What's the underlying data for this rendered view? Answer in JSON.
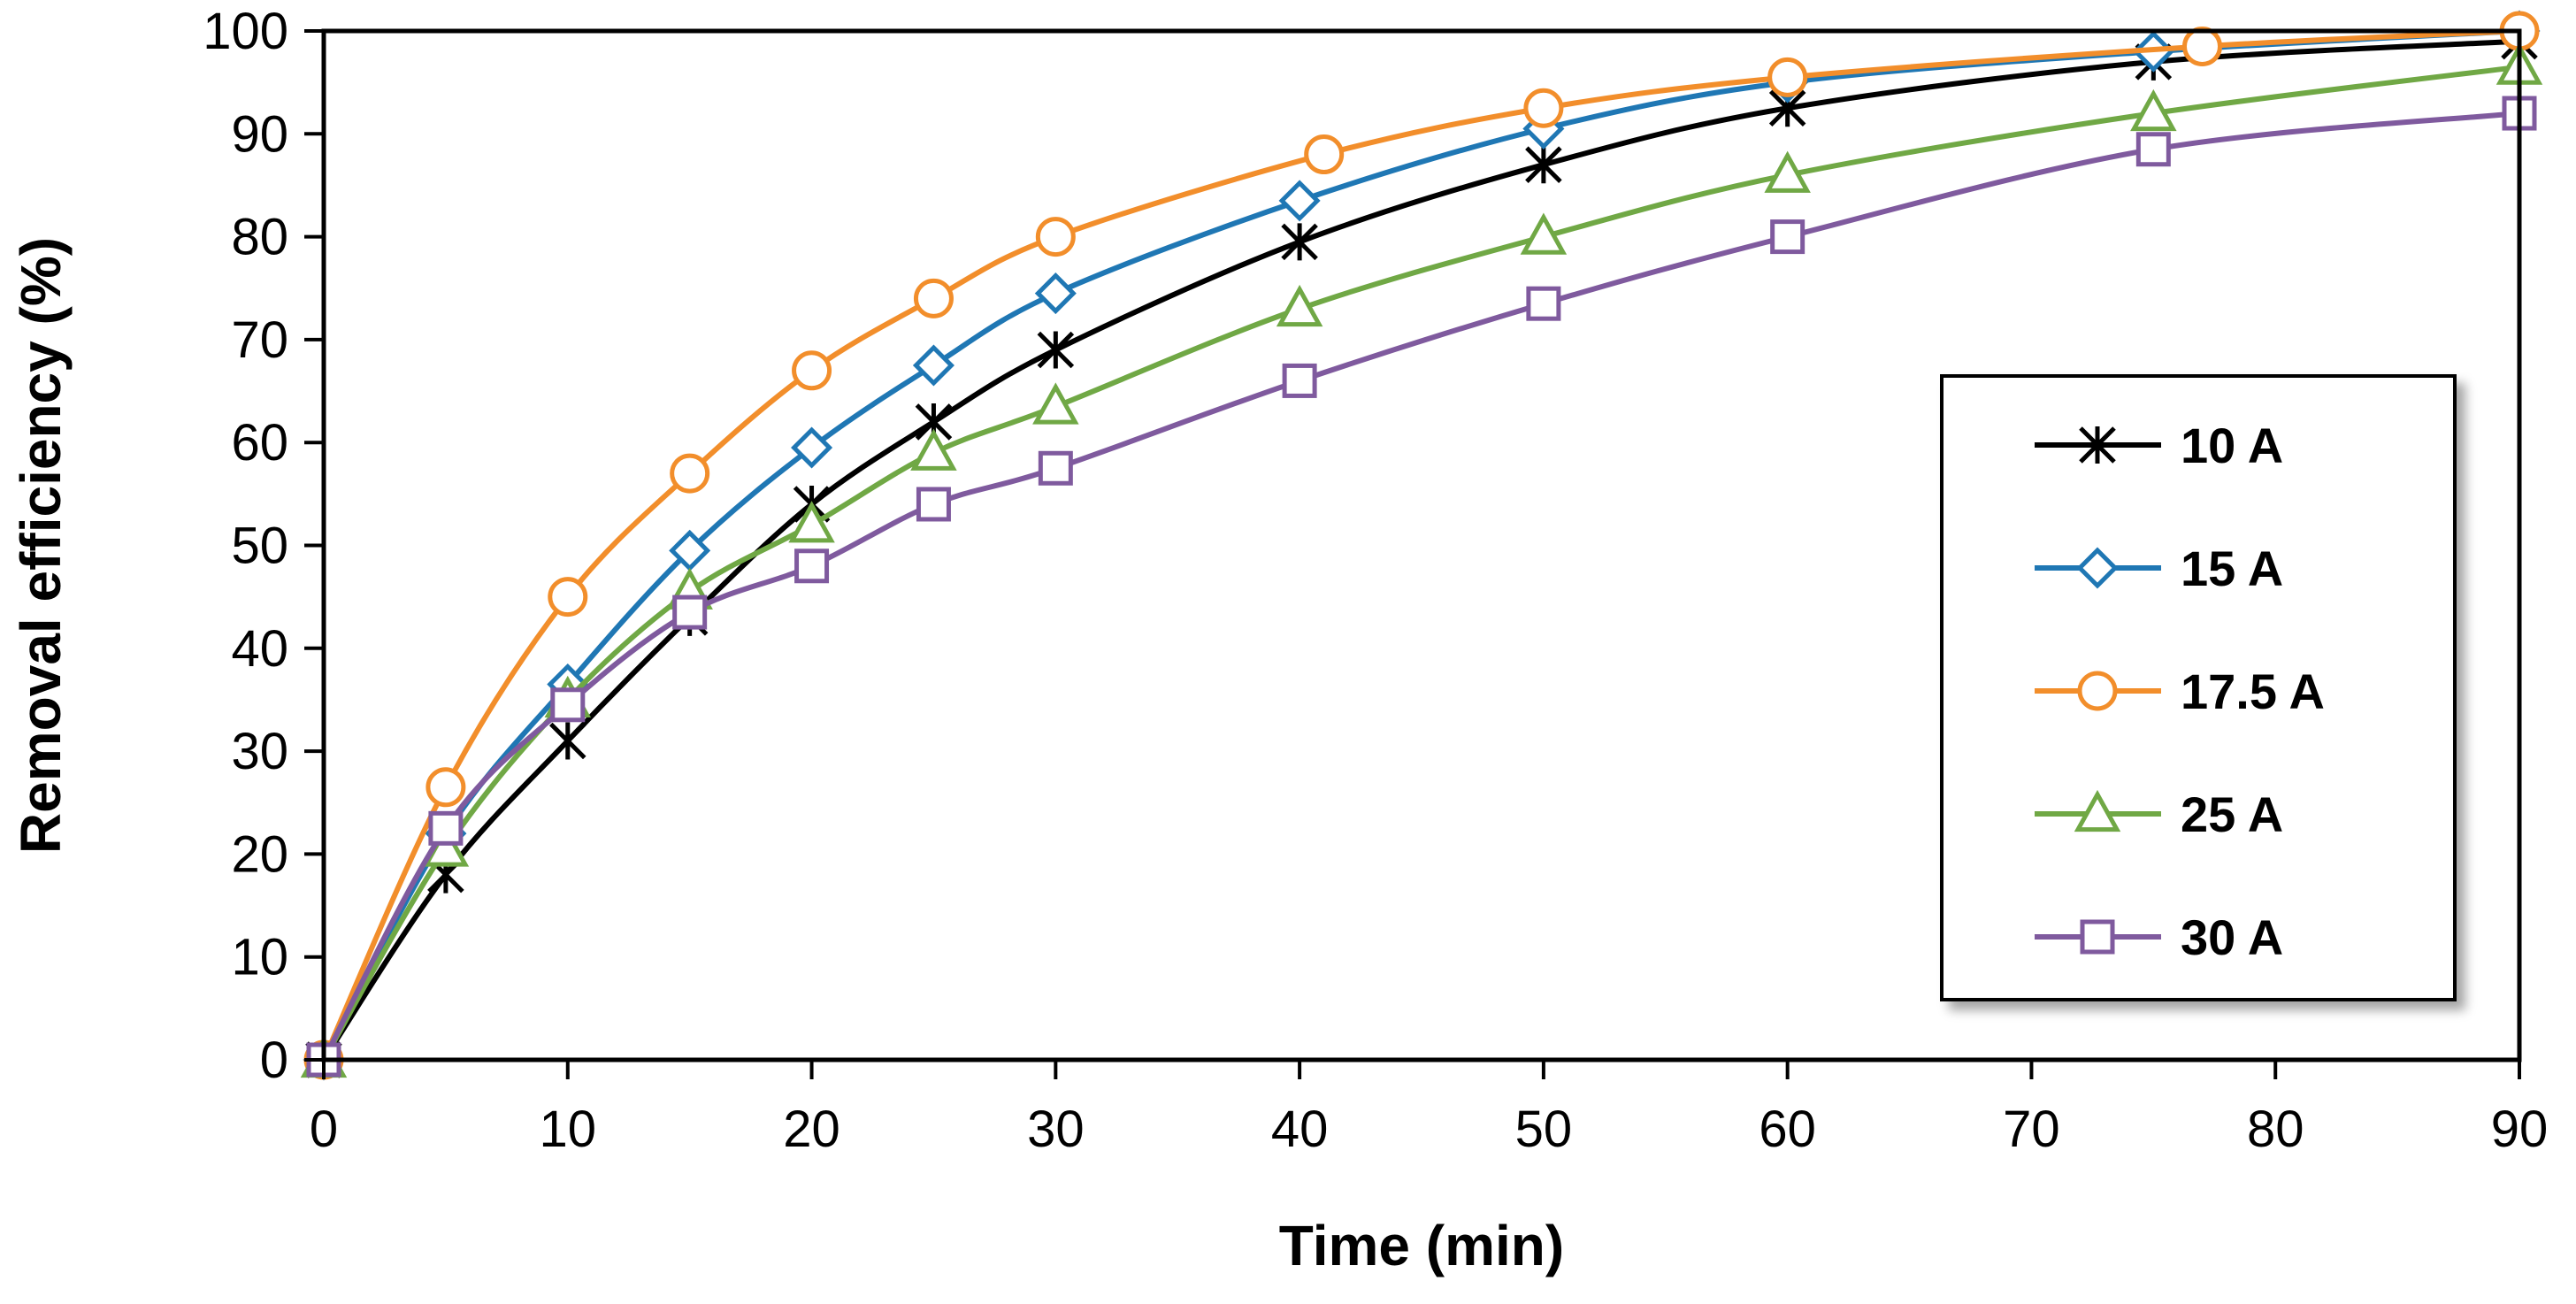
{
  "chart_data": {
    "type": "line",
    "xlabel": "Time (min)",
    "ylabel": "Removal efficiency (%)",
    "xlim": [
      0,
      90
    ],
    "ylim": [
      0,
      100
    ],
    "xticks": [
      0,
      10,
      20,
      30,
      40,
      50,
      60,
      70,
      80,
      90
    ],
    "yticks": [
      0,
      10,
      20,
      30,
      40,
      50,
      60,
      70,
      80,
      90,
      100
    ],
    "grid": false,
    "legend_position": "right",
    "series": [
      {
        "name": "10 A",
        "color": "#000000",
        "marker": "star",
        "x": [
          0,
          5,
          10,
          15,
          20,
          25,
          30,
          40,
          50,
          60,
          75,
          90
        ],
        "y": [
          0,
          18,
          31,
          43,
          54,
          62,
          69,
          79.5,
          87,
          92.5,
          97,
          99
        ]
      },
      {
        "name": "15 A",
        "color": "#1f77b4",
        "marker": "diamond",
        "x": [
          0,
          5,
          10,
          15,
          20,
          25,
          30,
          40,
          50,
          60,
          75,
          90
        ],
        "y": [
          0,
          22,
          36.5,
          49.5,
          59.5,
          67.5,
          74.5,
          83.5,
          90.5,
          95,
          98,
          100
        ]
      },
      {
        "name": "17.5 A",
        "color": "#f28e2b",
        "marker": "circle",
        "x": [
          0,
          5,
          10,
          15,
          20,
          25,
          30,
          41,
          50,
          60,
          77,
          90
        ],
        "y": [
          0,
          26.5,
          45,
          57,
          67,
          74,
          80,
          88,
          92.5,
          95.5,
          98.5,
          100
        ]
      },
      {
        "name": "25 A",
        "color": "#70a845",
        "marker": "triangle",
        "x": [
          0,
          5,
          10,
          15,
          20,
          25,
          30,
          40,
          50,
          60,
          75,
          90
        ],
        "y": [
          0,
          20.5,
          35,
          45.5,
          52,
          59,
          63.5,
          73,
          80,
          86,
          92,
          96.5
        ]
      },
      {
        "name": "30 A",
        "color": "#7f5a9e",
        "marker": "square",
        "x": [
          0,
          5,
          10,
          15,
          20,
          25,
          30,
          40,
          50,
          60,
          75,
          90
        ],
        "y": [
          0,
          22.5,
          34.5,
          43.5,
          48,
          54,
          57.5,
          66,
          73.5,
          80,
          88.5,
          92
        ]
      }
    ]
  }
}
